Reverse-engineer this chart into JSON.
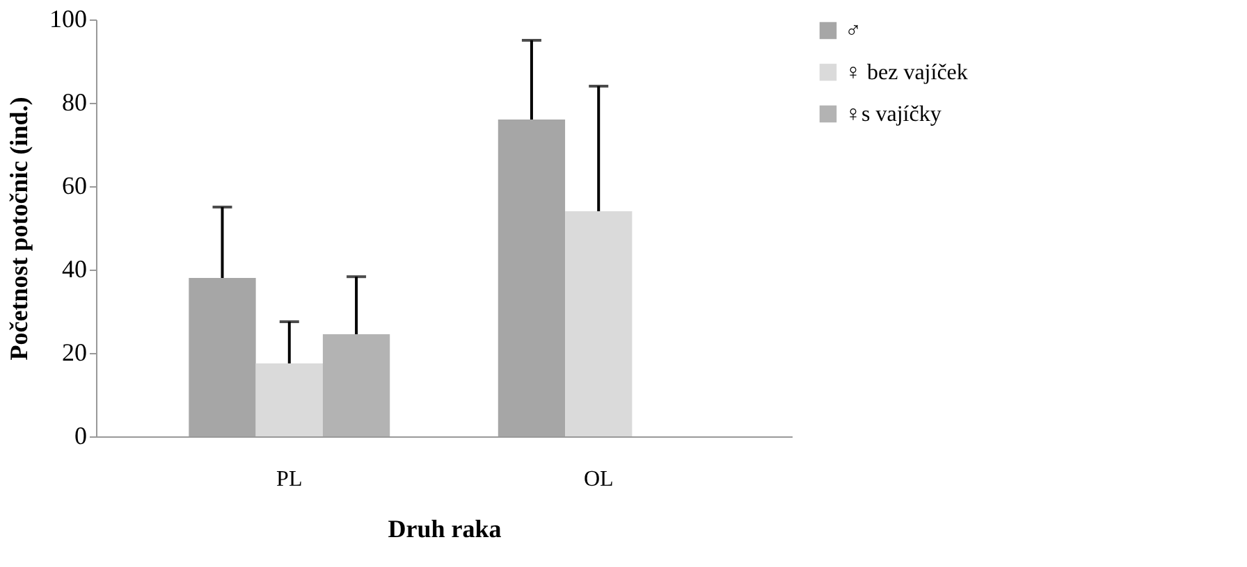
{
  "chart_data": {
    "type": "bar",
    "xlabel": "Druh raka",
    "ylabel": "Početnost potočnic (ind.)",
    "categories": [
      "PL",
      "OL"
    ],
    "series": [
      {
        "name": "♂",
        "color": "#a6a6a6",
        "values": [
          38,
          76
        ],
        "errors": [
          [
            38,
            55
          ],
          [
            76,
            95
          ]
        ]
      },
      {
        "name": "♀ bez vajíček",
        "color": "#dadada",
        "values": [
          17.5,
          54
        ],
        "errors": [
          [
            17.5,
            27.5
          ],
          [
            54,
            84
          ]
        ]
      },
      {
        "name": "♀s vajíčky",
        "color": "#b3b3b3",
        "values": [
          24.5,
          null
        ],
        "errors": [
          [
            24.5,
            38.3
          ],
          null
        ]
      }
    ],
    "ylim": [
      0,
      100
    ],
    "yticks": [
      0,
      20,
      40,
      60,
      80,
      100
    ],
    "grid": false,
    "legend": "right"
  }
}
